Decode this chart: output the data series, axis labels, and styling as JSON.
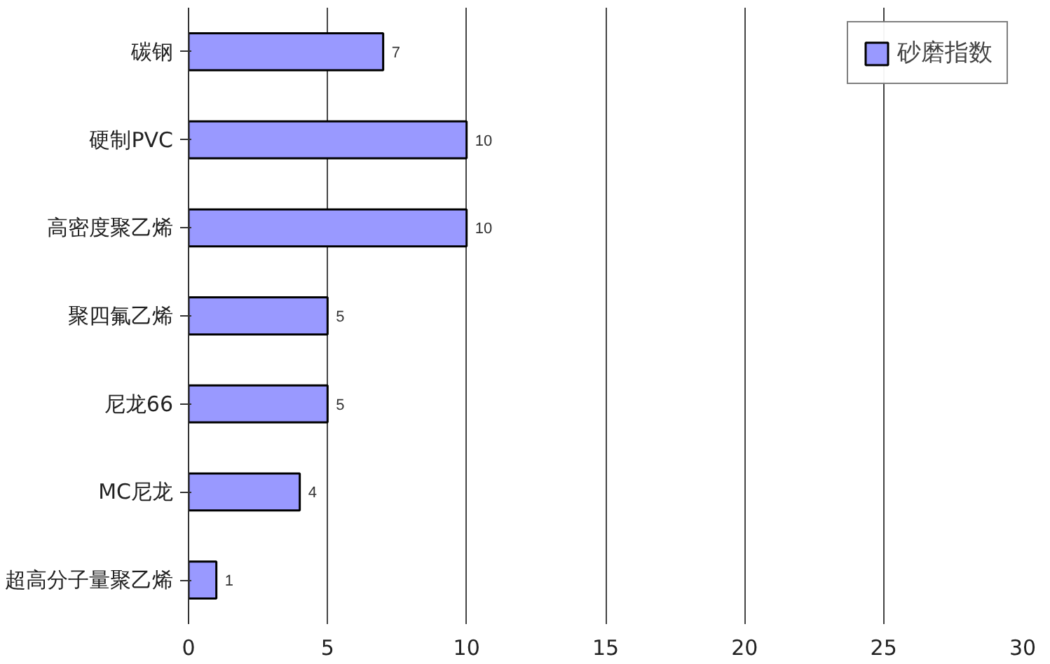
{
  "chart_data": {
    "type": "bar",
    "orientation": "horizontal",
    "categories": [
      "碳钢",
      "硬制PVC",
      "高密度聚乙烯",
      "聚四氟乙烯",
      "尼龙66",
      "MC尼龙",
      "超高分子量聚乙烯"
    ],
    "series": [
      {
        "name": "砂磨指数",
        "color": "#9999ff",
        "values": [
          7,
          10,
          10,
          5,
          5,
          4,
          1
        ]
      }
    ],
    "xlim": [
      0,
      30
    ],
    "xticks": [
      0,
      5,
      10,
      15,
      20,
      25,
      30
    ],
    "grid": "x",
    "legend": "top",
    "data_labels": true
  }
}
